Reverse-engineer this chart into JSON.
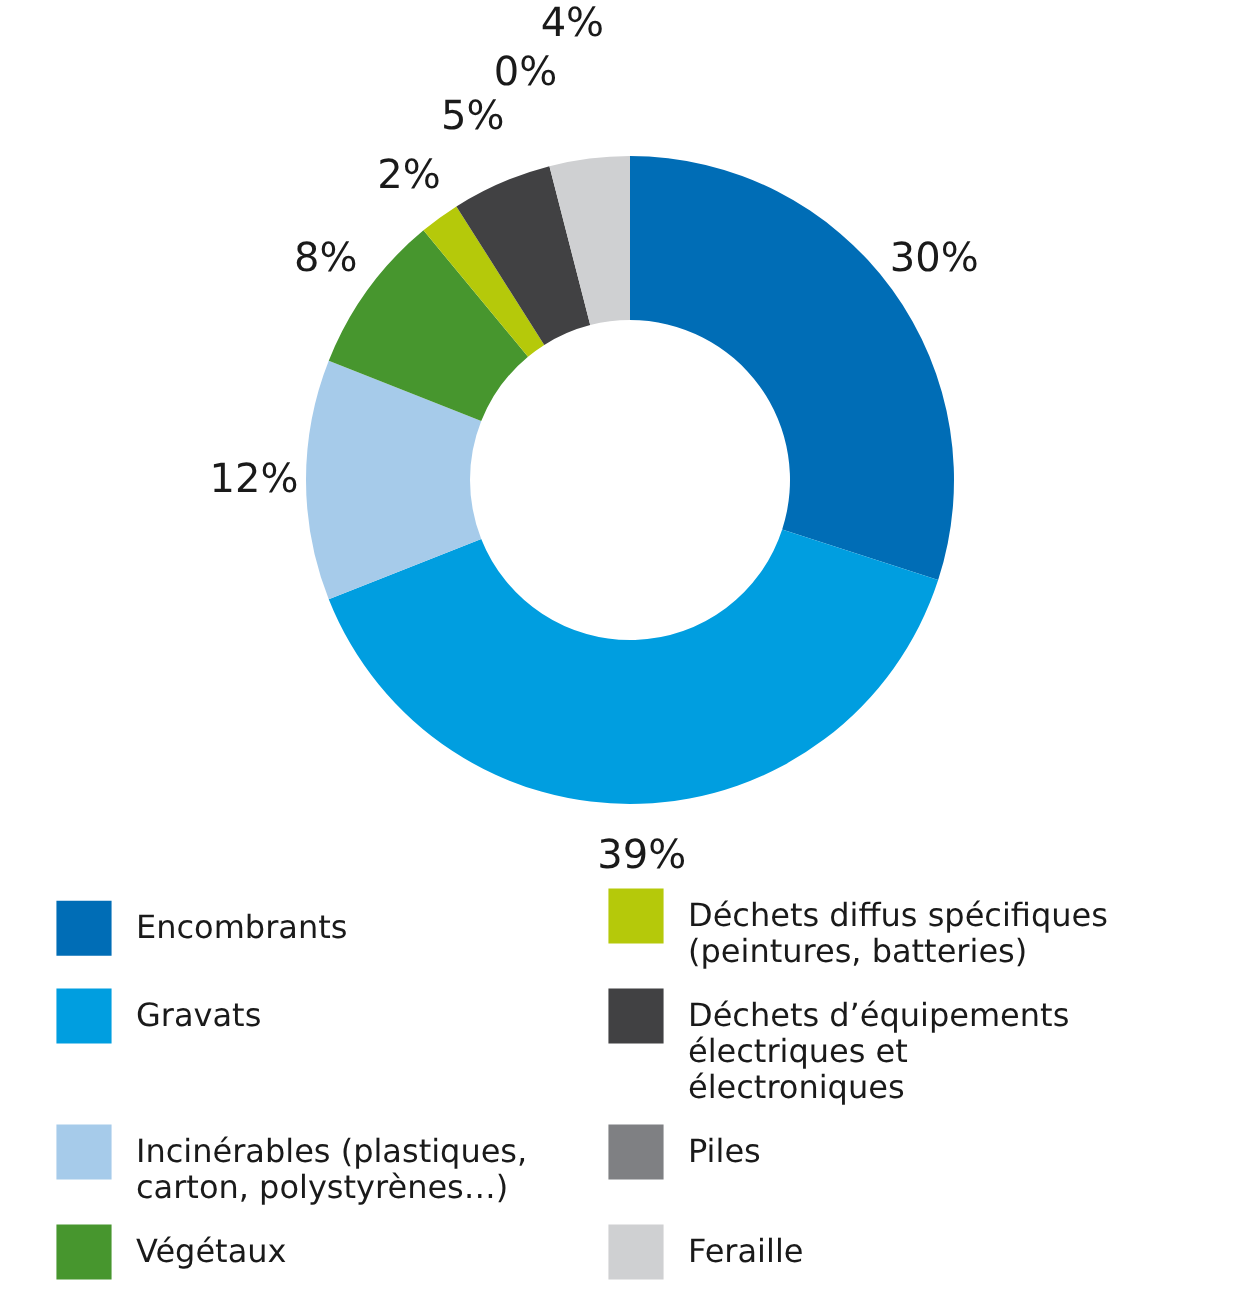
{
  "chart_data": {
    "type": "donut",
    "categories": [
      "Encombrants",
      "Gravats",
      "Incinérables (plastiques, carton, polystyrènes…)",
      "Végétaux",
      "Déchets diffus spécifiques (peintures, batteries)",
      "Déchets d’équipements électriques et électroniques",
      "Piles",
      "Feraille"
    ],
    "values": [
      30,
      39,
      12,
      8,
      2,
      5,
      0,
      4
    ],
    "value_labels": [
      "30%",
      "39%",
      "12%",
      "8%",
      "2%",
      "5%",
      "0%",
      "4%"
    ],
    "colors": [
      "#006db6",
      "#009ee0",
      "#a6cbea",
      "#47962e",
      "#b5c90a",
      "#414143",
      "#7f8083",
      "#cfd0d2"
    ],
    "legend": "bottom"
  }
}
